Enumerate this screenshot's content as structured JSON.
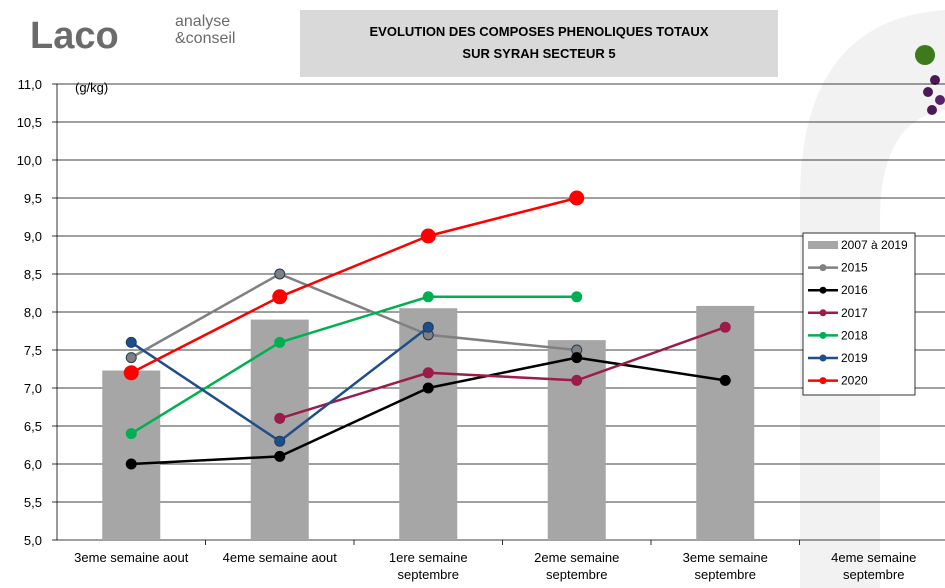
{
  "logo": {
    "name": "Laco",
    "tagline": [
      "analyse",
      "&conseil"
    ]
  },
  "chart_data": {
    "type": "combo",
    "title": [
      "EVOLUTION DES COMPOSES PHENOLIQUES TOTAUX",
      "SUR SYRAH SECTEUR 5"
    ],
    "y_label": "(g/kg)",
    "categories": [
      [
        "3eme semaine aout"
      ],
      [
        "4eme semaine aout"
      ],
      [
        "1ere semaine",
        "septembre"
      ],
      [
        "2eme semaine",
        "septembre"
      ],
      [
        "3eme semaine",
        "septembre"
      ],
      [
        "4eme semaine",
        "septembre"
      ]
    ],
    "ylim": [
      5.0,
      11.0
    ],
    "yticks": [
      {
        "value": 5.0,
        "label": "5,0"
      },
      {
        "value": 5.5,
        "label": "5,5"
      },
      {
        "value": 6.0,
        "label": "6,0"
      },
      {
        "value": 6.5,
        "label": "6,5"
      },
      {
        "value": 7.0,
        "label": "7,0"
      },
      {
        "value": 7.5,
        "label": "7,5"
      },
      {
        "value": 8.0,
        "label": "8,0"
      },
      {
        "value": 8.5,
        "label": "8,5"
      },
      {
        "value": 9.0,
        "label": "9,0"
      },
      {
        "value": 9.5,
        "label": "9,5"
      },
      {
        "value": 10.0,
        "label": "10,0"
      },
      {
        "value": 10.5,
        "label": "10,5"
      },
      {
        "value": 11.0,
        "label": "11,0"
      }
    ],
    "grid": true,
    "legend": "right",
    "series": [
      {
        "name": "2007 à 2019",
        "type": "bar",
        "color": "#a6a6a6",
        "values": [
          7.23,
          7.9,
          8.05,
          7.63,
          8.08,
          null
        ]
      },
      {
        "name": "2015",
        "type": "line",
        "color": "#808080",
        "values": [
          7.4,
          8.5,
          7.7,
          7.5,
          null,
          null
        ]
      },
      {
        "name": "2016",
        "type": "line",
        "color": "#000000",
        "values": [
          6.0,
          6.1,
          7.0,
          7.4,
          7.1,
          null
        ]
      },
      {
        "name": "2017",
        "type": "line",
        "color": "#9b1b4a",
        "values": [
          null,
          6.6,
          7.2,
          7.1,
          7.8,
          null
        ]
      },
      {
        "name": "2018",
        "type": "line",
        "color": "#00b050",
        "values": [
          6.4,
          7.6,
          8.2,
          8.2,
          null,
          null
        ]
      },
      {
        "name": "2019",
        "type": "line",
        "color": "#1f4e8c",
        "values": [
          7.6,
          6.3,
          7.8,
          null,
          null,
          null
        ]
      },
      {
        "name": "2020",
        "type": "line",
        "color": "#ff0000",
        "values": [
          7.2,
          8.2,
          9.0,
          9.5,
          null,
          null
        ]
      }
    ]
  }
}
